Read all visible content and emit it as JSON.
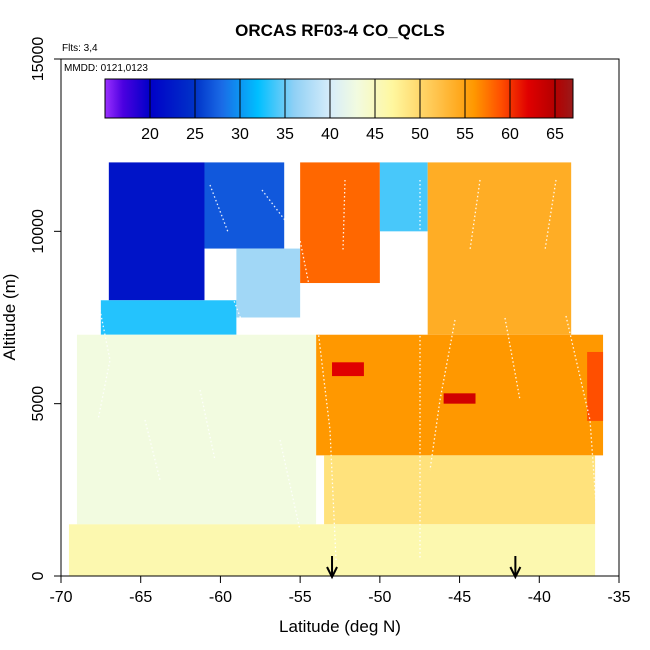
{
  "chart_data": {
    "type": "heatmap",
    "title": "ORCAS RF03-4 CO_QCLS",
    "notes": [
      "Flts: 3,4",
      "MMDD: 0121,0123"
    ],
    "xlabel": "Latitude (deg N)",
    "ylabel": "Altitude (m)",
    "xlim": [
      -70,
      -35
    ],
    "ylim": [
      0,
      15000
    ],
    "x_ticks": [
      -70,
      -65,
      -60,
      -55,
      -50,
      -45,
      -40,
      -35
    ],
    "x_tick_labels": [
      "-70",
      "-65",
      "-60",
      "-55",
      "-50",
      "-45",
      "-40",
      "-35"
    ],
    "y_ticks": [
      0,
      5000,
      10000,
      15000
    ],
    "y_tick_labels": [
      "0",
      "5000",
      "10000",
      "15000"
    ],
    "colorbar": {
      "range": [
        15,
        67
      ],
      "ticks": [
        20,
        25,
        30,
        35,
        40,
        45,
        50,
        55,
        60,
        65
      ],
      "tick_labels": [
        "20",
        "25",
        "30",
        "35",
        "40",
        "45",
        "50",
        "55",
        "60",
        "65"
      ],
      "stops": [
        {
          "value": 15,
          "color": "#9b30ff"
        },
        {
          "value": 17,
          "color": "#4b00e0"
        },
        {
          "value": 20,
          "color": "#0000c8"
        },
        {
          "value": 25,
          "color": "#0033c8"
        },
        {
          "value": 28,
          "color": "#1a6be6"
        },
        {
          "value": 32,
          "color": "#00bfff"
        },
        {
          "value": 36,
          "color": "#8fd0f5"
        },
        {
          "value": 40,
          "color": "#d6ecfa"
        },
        {
          "value": 43,
          "color": "#f2fbe0"
        },
        {
          "value": 47,
          "color": "#fff79e"
        },
        {
          "value": 52,
          "color": "#ffc24a"
        },
        {
          "value": 56,
          "color": "#ff9800"
        },
        {
          "value": 59,
          "color": "#ff4f00"
        },
        {
          "value": 62,
          "color": "#e00000"
        },
        {
          "value": 65,
          "color": "#b40000"
        },
        {
          "value": 67,
          "color": "#9a1a1a"
        }
      ]
    },
    "profile_markers_lat": [
      -53,
      -41.5
    ],
    "cells": [
      {
        "lat0": -67,
        "lat1": -61,
        "alt0": 8000,
        "alt1": 12000,
        "value": 22
      },
      {
        "lat0": -67.5,
        "lat1": -59,
        "alt0": 7000,
        "alt1": 8000,
        "value": 33
      },
      {
        "lat0": -61,
        "lat1": -56,
        "alt0": 9500,
        "alt1": 12000,
        "value": 27
      },
      {
        "lat0": -59,
        "lat1": -55,
        "alt0": 7500,
        "alt1": 9500,
        "value": 37
      },
      {
        "lat0": -55,
        "lat1": -50,
        "alt0": 8500,
        "alt1": 12000,
        "value": 58
      },
      {
        "lat0": -50,
        "lat1": -47,
        "alt0": 10000,
        "alt1": 12000,
        "value": 34
      },
      {
        "lat0": -47,
        "lat1": -38,
        "alt0": 7000,
        "alt1": 12000,
        "value": 54
      },
      {
        "lat0": -54,
        "lat1": -36,
        "alt0": 3500,
        "alt1": 7000,
        "value": 56
      },
      {
        "lat0": -53,
        "lat1": -51,
        "alt0": 5800,
        "alt1": 6200,
        "value": 62
      },
      {
        "lat0": -46,
        "lat1": -44,
        "alt0": 5000,
        "alt1": 5300,
        "value": 63
      },
      {
        "lat0": -37,
        "lat1": -36,
        "alt0": 4500,
        "alt1": 6500,
        "value": 59
      },
      {
        "lat0": -53.5,
        "lat1": -36.5,
        "alt0": 1500,
        "alt1": 3500,
        "value": 49
      },
      {
        "lat0": -69,
        "lat1": -54,
        "alt0": 1500,
        "alt1": 7000,
        "value": 43
      },
      {
        "lat0": -69.5,
        "lat1": -36.5,
        "alt0": 0,
        "alt1": 1500,
        "value": 46
      }
    ]
  }
}
